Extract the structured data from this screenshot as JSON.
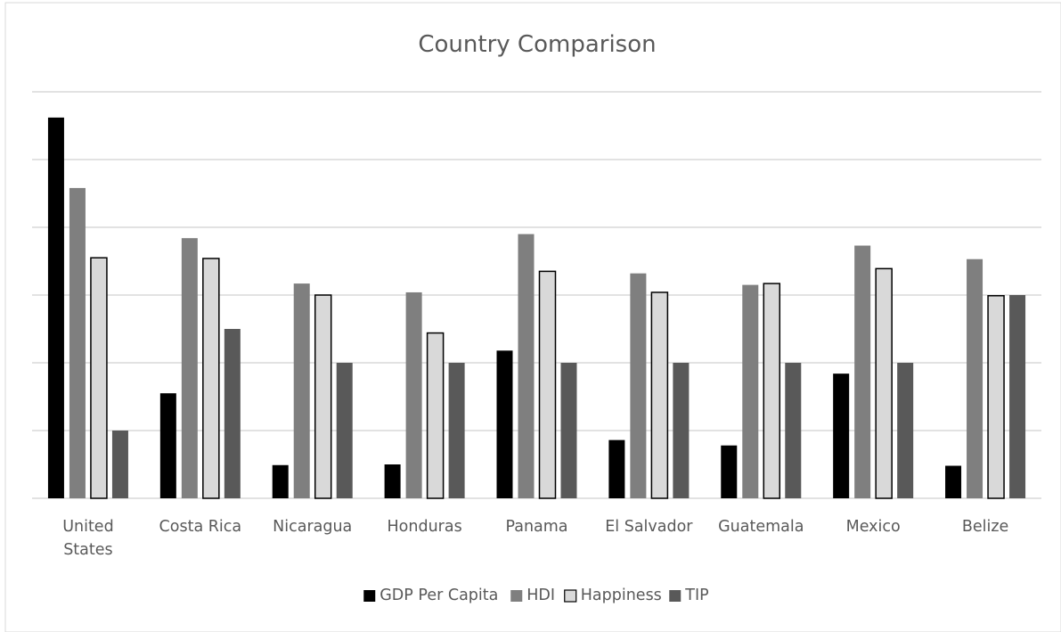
{
  "chart_data": {
    "type": "bar",
    "title": "Country Comparison",
    "xlabel": "",
    "ylabel": "",
    "ylim": [
      0,
      6
    ],
    "grid": true,
    "legend_position": "bottom",
    "categories": [
      "United States",
      "Costa Rica",
      "Nicaragua",
      "Honduras",
      "Panama",
      "El Salvador",
      "Guatemala",
      "Mexico",
      "Belize"
    ],
    "series": [
      {
        "name": "GDP Per Capita",
        "color": "#000000",
        "values": [
          5.62,
          1.55,
          0.49,
          0.5,
          2.18,
          0.86,
          0.78,
          1.84,
          0.48
        ]
      },
      {
        "name": "HDI",
        "color": "#7f7f7f",
        "values": [
          4.58,
          3.84,
          3.17,
          3.04,
          3.9,
          3.32,
          3.15,
          3.73,
          3.53
        ]
      },
      {
        "name": "Happiness",
        "color": "#d9d9d9",
        "values": [
          3.55,
          3.54,
          3.0,
          2.44,
          3.35,
          3.04,
          3.17,
          3.39,
          2.99
        ]
      },
      {
        "name": "TIP",
        "color": "#595959",
        "values": [
          1.0,
          2.5,
          2.0,
          2.0,
          2.0,
          2.0,
          2.0,
          2.0,
          3.0
        ]
      }
    ]
  }
}
